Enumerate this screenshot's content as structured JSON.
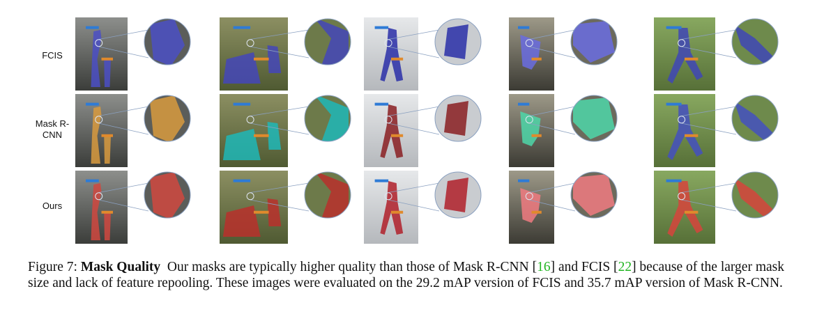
{
  "rows": [
    {
      "label": "FCIS",
      "mask_colors": [
        "#4b4fc4",
        "#4446b8",
        "#2a2fa8",
        "#6a6ce0",
        "#3f46b6"
      ]
    },
    {
      "label": "Mask R-CNN",
      "mask_colors": [
        "#d89a3e",
        "#1fb7b7",
        "#8a1e22",
        "#4dd6a8",
        "#4450c0"
      ]
    },
    {
      "label": "Ours",
      "mask_colors": [
        "#d04840",
        "#b8302c",
        "#b0202a",
        "#f07a80",
        "#d6443c"
      ]
    }
  ],
  "caption": {
    "figure_label": "Figure 7:",
    "title": "Mask Quality",
    "text1": "Our masks are typically higher quality than those of Mask R-CNN [",
    "ref1": "16",
    "text2": "] and FCIS [",
    "ref2": "22",
    "text3": "] because of the larger mask size and lack of feature repooling. These images were evaluated on the 29.2 mAP version of FCIS and 35.7 mAP version of Mask R-CNN."
  },
  "colors": {
    "reference_link": "#22b522",
    "zoom_border": "#8aa0c0"
  }
}
